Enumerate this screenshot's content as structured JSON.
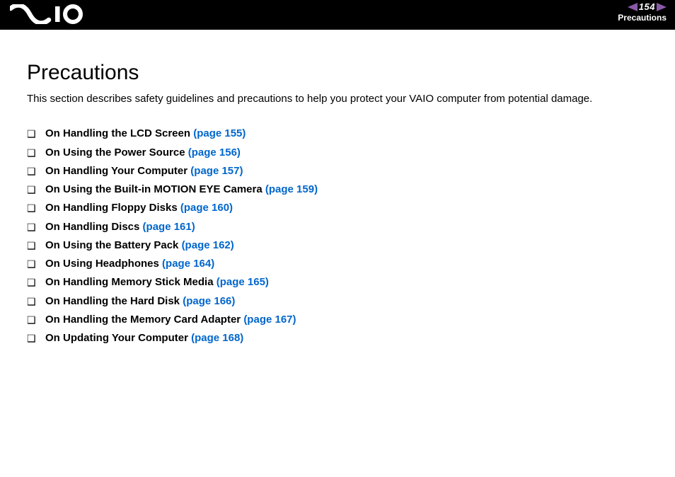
{
  "header": {
    "page_number": "154",
    "breadcrumb": "Precautions",
    "arrow_left_color": "#8a5aa8",
    "arrow_right_color": "#8a5aa8",
    "bg_color": "#000000",
    "text_color": "#ffffff"
  },
  "logo": {
    "fill": "#ffffff"
  },
  "content": {
    "title": "Precautions",
    "intro": "This section describes safety guidelines and precautions to help you protect your VAIO computer from potential damage.",
    "link_color": "#0066cc",
    "items": [
      {
        "label": "On Handling the LCD Screen",
        "page_ref": "(page 155)"
      },
      {
        "label": "On Using the Power Source",
        "page_ref": "(page 156)"
      },
      {
        "label": "On Handling Your Computer",
        "page_ref": "(page 157)"
      },
      {
        "label": "On Using the Built-in MOTION EYE Camera",
        "page_ref": "(page 159)"
      },
      {
        "label": "On Handling Floppy Disks",
        "page_ref": "(page 160)"
      },
      {
        "label": "On Handling Discs",
        "page_ref": "(page 161)"
      },
      {
        "label": "On Using the Battery Pack",
        "page_ref": "(page 162)"
      },
      {
        "label": "On Using Headphones",
        "page_ref": "(page 164)"
      },
      {
        "label": "On Handling Memory Stick Media",
        "page_ref": "(page 165)"
      },
      {
        "label": "On Handling the Hard Disk",
        "page_ref": "(page 166)"
      },
      {
        "label": "On Handling the Memory Card Adapter",
        "page_ref": "(page 167)"
      },
      {
        "label": "On Updating Your Computer",
        "page_ref": "(page 168)"
      }
    ]
  }
}
